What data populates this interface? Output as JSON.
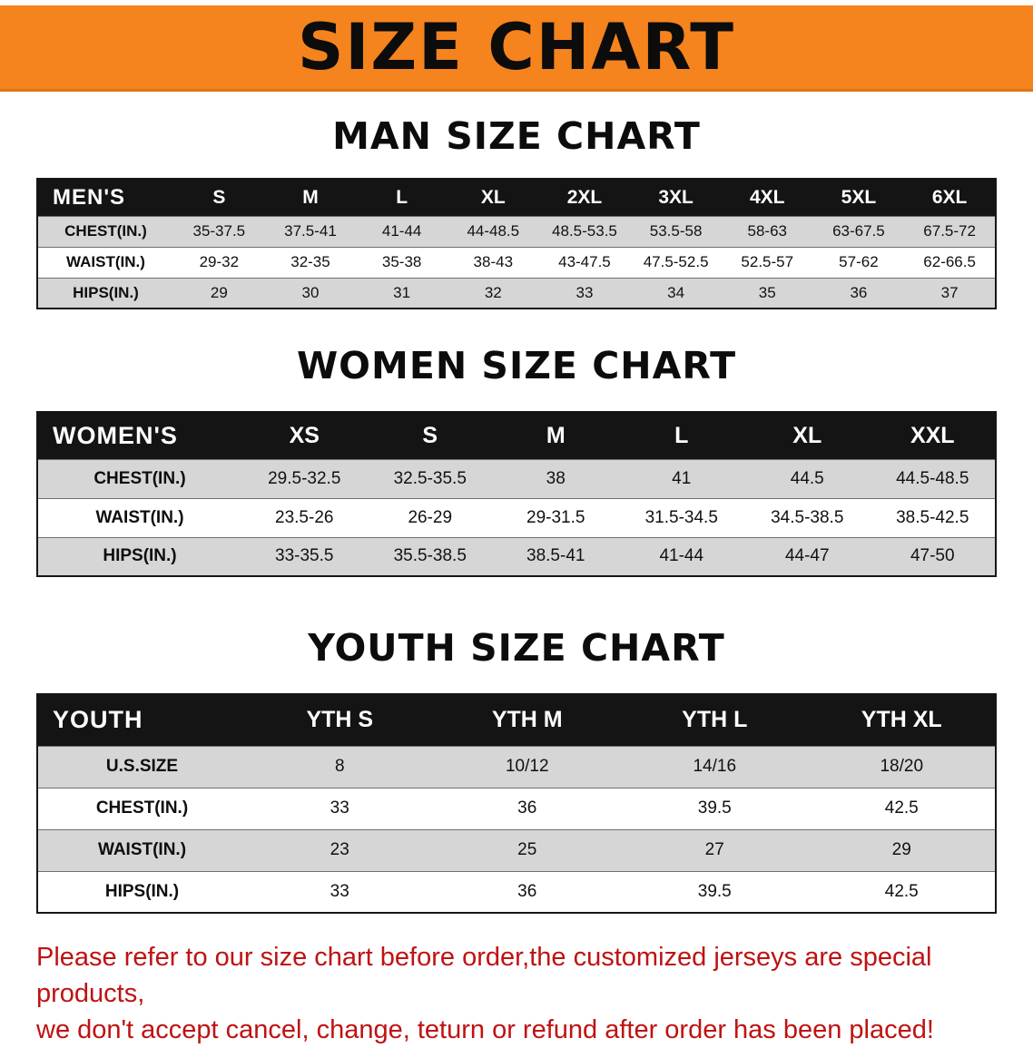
{
  "banner": {
    "title": "SIZE CHART"
  },
  "men": {
    "heading": "MAN SIZE CHART",
    "label": "MEN'S",
    "columns": [
      "S",
      "M",
      "L",
      "XL",
      "2XL",
      "3XL",
      "4XL",
      "5XL",
      "6XL"
    ],
    "rows": [
      {
        "label": "CHEST(IN.)",
        "values": [
          "35-37.5",
          "37.5-41",
          "41-44",
          "44-48.5",
          "48.5-53.5",
          "53.5-58",
          "58-63",
          "63-67.5",
          "67.5-72"
        ]
      },
      {
        "label": "WAIST(IN.)",
        "values": [
          "29-32",
          "32-35",
          "35-38",
          "38-43",
          "43-47.5",
          "47.5-52.5",
          "52.5-57",
          "57-62",
          "62-66.5"
        ]
      },
      {
        "label": "HIPS(IN.)",
        "values": [
          "29",
          "30",
          "31",
          "32",
          "33",
          "34",
          "35",
          "36",
          "37"
        ]
      }
    ]
  },
  "women": {
    "heading": "WOMEN SIZE CHART",
    "label": "WOMEN'S",
    "columns": [
      "XS",
      "S",
      "M",
      "L",
      "XL",
      "XXL"
    ],
    "rows": [
      {
        "label": "CHEST(IN.)",
        "values": [
          "29.5-32.5",
          "32.5-35.5",
          "38",
          "41",
          "44.5",
          "44.5-48.5"
        ]
      },
      {
        "label": "WAIST(IN.)",
        "values": [
          "23.5-26",
          "26-29",
          "29-31.5",
          "31.5-34.5",
          "34.5-38.5",
          "38.5-42.5"
        ]
      },
      {
        "label": "HIPS(IN.)",
        "values": [
          "33-35.5",
          "35.5-38.5",
          "38.5-41",
          "41-44",
          "44-47",
          "47-50"
        ]
      }
    ]
  },
  "youth": {
    "heading": "YOUTH SIZE CHART",
    "label": "YOUTH",
    "columns": [
      "YTH S",
      "YTH M",
      "YTH L",
      "YTH XL"
    ],
    "rows": [
      {
        "label": "U.S.SIZE",
        "values": [
          "8",
          "10/12",
          "14/16",
          "18/20"
        ]
      },
      {
        "label": "CHEST(IN.)",
        "values": [
          "33",
          "36",
          "39.5",
          "42.5"
        ]
      },
      {
        "label": "WAIST(IN.)",
        "values": [
          "23",
          "25",
          "27",
          "29"
        ]
      },
      {
        "label": "HIPS(IN.)",
        "values": [
          "33",
          "36",
          "39.5",
          "42.5"
        ]
      }
    ]
  },
  "footer": {
    "line1": "Please refer to our size chart before order,the customized jerseys are special products,",
    "line2": "we don't accept cancel, change, teturn or refund after order has been placed!"
  },
  "colors": {
    "banner_bg": "#f5831e",
    "table_header_bg": "#141414",
    "row_alt_bg": "#d6d6d6",
    "disclaimer_red": "#bf1212"
  }
}
